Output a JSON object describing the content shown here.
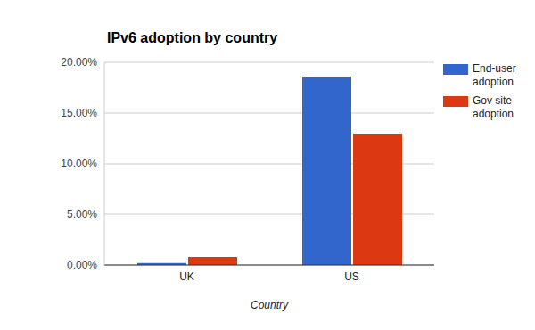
{
  "chart_data": {
    "type": "bar",
    "title": "IPv6 adoption by country",
    "x_label": "Country",
    "categories": [
      "UK",
      "US"
    ],
    "series": [
      {
        "name": "End-user adoption",
        "color": "#3366cc",
        "values": [
          0.2,
          18.5
        ]
      },
      {
        "name": "Gov site adoption",
        "color": "#dc3912",
        "values": [
          0.8,
          12.9
        ]
      }
    ],
    "ylim": [
      0,
      20
    ],
    "yticks": [
      {
        "value": 0,
        "label": "0.00%"
      },
      {
        "value": 5,
        "label": "5.00%"
      },
      {
        "value": 10,
        "label": "10.00%"
      },
      {
        "value": 15,
        "label": "15.00%"
      },
      {
        "value": 20,
        "label": "20.00%"
      }
    ],
    "grid": true,
    "legend": "right"
  }
}
